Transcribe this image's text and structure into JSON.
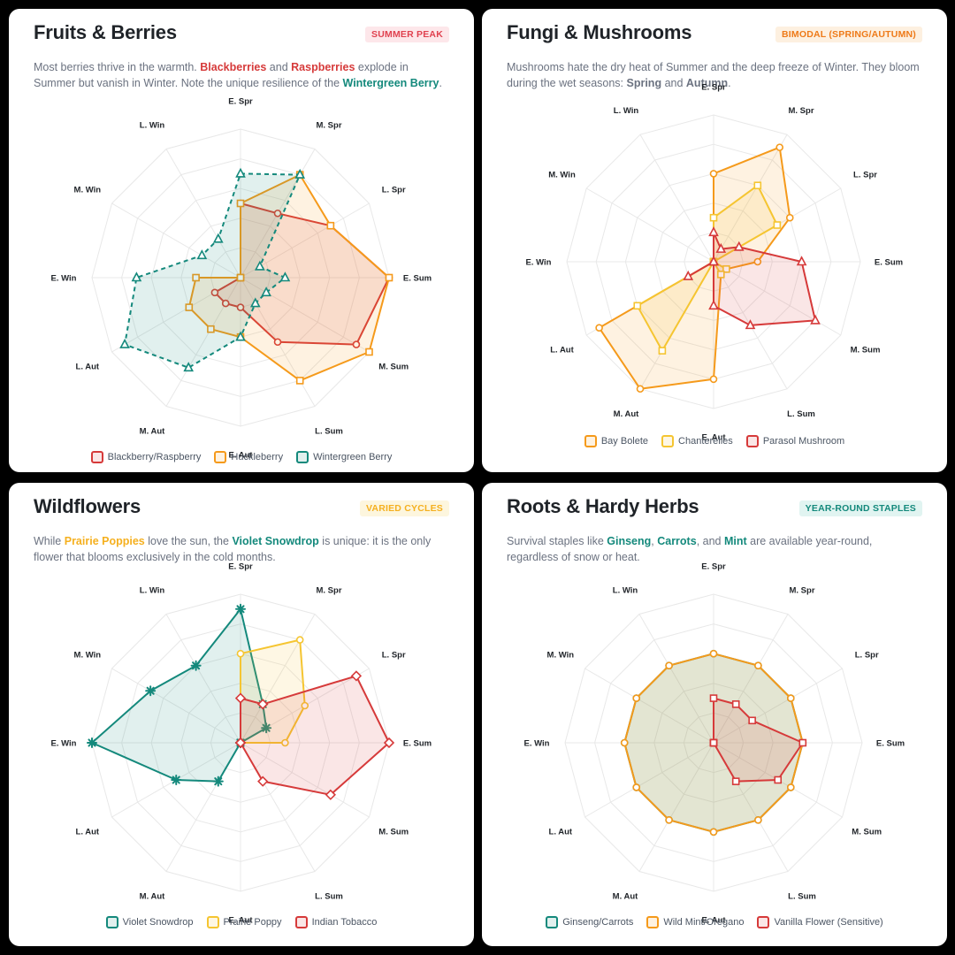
{
  "panels": [
    {
      "title": "Fruits & Berries",
      "badge": "SUMMER PEAK",
      "badge_fg": "#e0414f",
      "badge_bg": "#fde7ea",
      "desc": [
        {
          "t": "Most berries thrive in the warmth. "
        },
        {
          "t": "Blackberries",
          "c": "#d63a3a"
        },
        {
          "t": " and "
        },
        {
          "t": "Raspberries",
          "c": "#d63a3a"
        },
        {
          "t": " explode in Summer but vanish in Winter. Note the unique resilience of the "
        },
        {
          "t": "Wintergreen Berry",
          "c": "#14897c"
        },
        {
          "t": "."
        }
      ],
      "chart_data": {
        "type": "radar",
        "axes": [
          "E. Spr",
          "M. Spr",
          "L. Spr",
          "E. Sum",
          "M. Sum",
          "L. Sum",
          "E. Aut",
          "M. Aut",
          "L. Aut",
          "E. Win",
          "M. Win",
          "L. Win"
        ],
        "rmax": 10,
        "series": [
          {
            "name": "Blackberry/Raspberry",
            "color": "#d63a3a",
            "marker": "circle",
            "dashed": false,
            "values": [
              5,
              5,
              7,
              10,
              9,
              5,
              2,
              2,
              2,
              0,
              0,
              0
            ]
          },
          {
            "name": "Huckleberry",
            "color": "#f59a1b",
            "marker": "square",
            "dashed": false,
            "values": [
              5,
              8,
              7,
              10,
              10,
              8,
              4,
              4,
              4,
              3,
              0,
              0
            ]
          },
          {
            "name": "Wintergreen Berry",
            "color": "#14897c",
            "marker": "triangle",
            "dashed": true,
            "values": [
              7,
              8,
              1.5,
              3,
              2,
              2,
              4,
              7,
              9,
              7,
              3,
              3
            ]
          }
        ]
      }
    },
    {
      "title": "Fungi & Mushrooms",
      "badge": "BIMODAL (SPRING/AUTUMN)",
      "badge_fg": "#ee7a18",
      "badge_bg": "#fdf0e0",
      "desc": [
        {
          "t": "Mushrooms hate the dry heat of Summer and the deep freeze of Winter. They bloom during the wet seasons: "
        },
        {
          "t": "Spring",
          "c": "#6b7280"
        },
        {
          "t": " and "
        },
        {
          "t": "Autumn",
          "c": "#6b7280"
        },
        {
          "t": "."
        }
      ],
      "chart_data": {
        "type": "radar",
        "axes": [
          "E. Spr",
          "M. Spr",
          "L. Spr",
          "E. Sum",
          "M. Sum",
          "L. Sum",
          "E. Aut",
          "M. Aut",
          "L. Aut",
          "E. Win",
          "M. Win",
          "L. Win"
        ],
        "rmax": 10,
        "series": [
          {
            "name": "Bay Bolete",
            "color": "#f59a1b",
            "marker": "circle",
            "dashed": false,
            "values": [
              6,
              9,
              6,
              3,
              1,
              1,
              8,
              10,
              9,
              0,
              0,
              0
            ]
          },
          {
            "name": "Chanterelles",
            "color": "#f5c531",
            "marker": "square",
            "dashed": false,
            "values": [
              3,
              6,
              5,
              0,
              1,
              1,
              0,
              7,
              6,
              0,
              0,
              0
            ]
          },
          {
            "name": "Parasol Mushroom",
            "color": "#d63a3a",
            "marker": "triangle",
            "dashed": false,
            "values": [
              2,
              1,
              2,
              6,
              8,
              5,
              3,
              0,
              2,
              0,
              0,
              0
            ]
          }
        ]
      }
    },
    {
      "title": "Wildflowers",
      "badge": "VARIED CYCLES",
      "badge_fg": "#f5b01f",
      "badge_bg": "#fdf6de",
      "desc": [
        {
          "t": "While "
        },
        {
          "t": "Prairie Poppies",
          "c": "#f5b01f"
        },
        {
          "t": " love the sun, the "
        },
        {
          "t": "Violet Snowdrop",
          "c": "#14897c"
        },
        {
          "t": " is unique: it is the only flower that blooms exclusively in the cold months."
        }
      ],
      "chart_data": {
        "type": "radar",
        "axes": [
          "E. Spr",
          "M. Spr",
          "L. Spr",
          "E. Sum",
          "M. Sum",
          "L. Sum",
          "E. Aut",
          "M. Aut",
          "L. Aut",
          "E. Win",
          "M. Win",
          "L. Win"
        ],
        "rmax": 10,
        "series": [
          {
            "name": "Violet Snowdrop",
            "color": "#14897c",
            "marker": "star",
            "dashed": false,
            "values": [
              9,
              3,
              2,
              0,
              0,
              0,
              0,
              3,
              5,
              10,
              7,
              6
            ]
          },
          {
            "name": "Prairie Poppy",
            "color": "#f5c531",
            "marker": "circle",
            "dashed": false,
            "values": [
              6,
              8,
              5,
              3,
              0,
              0,
              0,
              0,
              0,
              0,
              0,
              0
            ]
          },
          {
            "name": "Indian Tobacco",
            "color": "#d63a3a",
            "marker": "diamond",
            "dashed": false,
            "values": [
              3,
              3,
              9,
              10,
              7,
              3,
              0,
              0,
              0,
              0,
              0,
              0
            ]
          }
        ]
      }
    },
    {
      "title": "Roots & Hardy Herbs",
      "badge": "YEAR-ROUND STAPLES",
      "badge_fg": "#14897c",
      "badge_bg": "#e1f4f1",
      "desc": [
        {
          "t": "Survival staples like "
        },
        {
          "t": "Ginseng",
          "c": "#14897c"
        },
        {
          "t": ", "
        },
        {
          "t": "Carrots",
          "c": "#14897c"
        },
        {
          "t": ", and "
        },
        {
          "t": "Mint",
          "c": "#14897c"
        },
        {
          "t": " are available year-round, regardless of snow or heat."
        }
      ],
      "chart_data": {
        "type": "radar",
        "axes": [
          "E. Spr",
          "M. Spr",
          "L. Spr",
          "E. Sum",
          "M. Sum",
          "L. Sum",
          "E. Aut",
          "M. Aut",
          "L. Aut",
          "E. Win",
          "M. Win",
          "L. Win"
        ],
        "rmax": 10,
        "series": [
          {
            "name": "Ginseng/Carrots",
            "color": "#14897c",
            "marker": "circle",
            "dashed": false,
            "values": [
              6,
              6,
              6,
              6,
              6,
              6,
              6,
              6,
              6,
              6,
              6,
              6
            ]
          },
          {
            "name": "Wild Mint/Oregano",
            "color": "#f59a1b",
            "marker": "circle",
            "dashed": false,
            "values": [
              6,
              6,
              6,
              6,
              6,
              6,
              6,
              6,
              6,
              6,
              6,
              6
            ]
          },
          {
            "name": "Vanilla Flower (Sensitive)",
            "color": "#d63a3a",
            "marker": "square",
            "dashed": false,
            "values": [
              3,
              3,
              3,
              6,
              5,
              3,
              0,
              0,
              0,
              0,
              0,
              0
            ]
          }
        ]
      }
    }
  ]
}
